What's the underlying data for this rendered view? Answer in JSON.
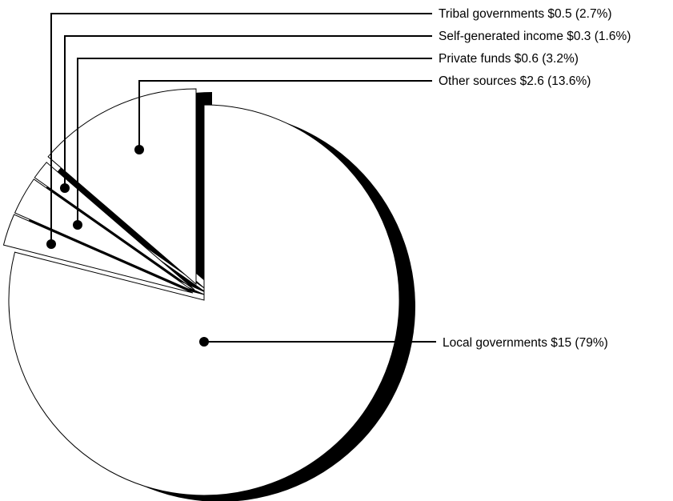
{
  "chart_data": {
    "type": "pie",
    "title": "",
    "exploded": true,
    "shadow": true,
    "colors": {
      "fill": "#ffffff",
      "stroke": "#000000",
      "shadow": "#000000"
    },
    "slices": [
      {
        "name": "Local governments",
        "value": 15,
        "percent": 79,
        "label": "Local governments $15 (79%)"
      },
      {
        "name": "Tribal governments",
        "value": 0.5,
        "percent": 2.7,
        "label": "Tribal governments $0.5 (2.7%)"
      },
      {
        "name": "Private funds",
        "value": 0.6,
        "percent": 3.2,
        "label": "Private funds $0.6 (3.2%)"
      },
      {
        "name": "Self-generated income",
        "value": 0.3,
        "percent": 1.6,
        "label": "Self-generated income $0.3 (1.6%)"
      },
      {
        "name": "Other sources",
        "value": 2.6,
        "percent": 13.6,
        "label": "Other sources $2.6 (13.6%)"
      }
    ]
  }
}
